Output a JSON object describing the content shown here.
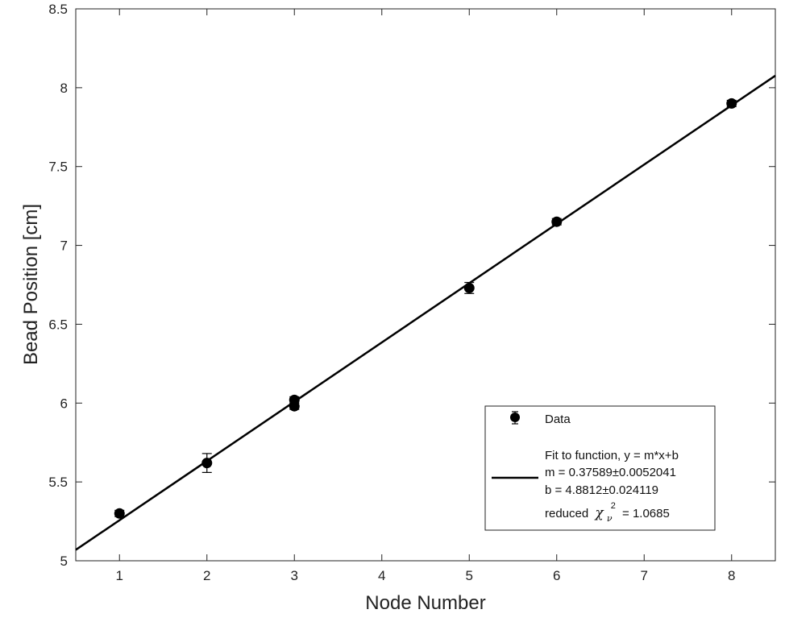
{
  "chart_data": {
    "type": "scatter",
    "xlabel": "Node Number",
    "ylabel": "Bead Position [cm]",
    "xlim": [
      0.5,
      8.5
    ],
    "ylim": [
      5,
      8.5
    ],
    "x_ticks": [
      "1",
      "2",
      "3",
      "4",
      "5",
      "6",
      "7",
      "8"
    ],
    "y_ticks": [
      "5",
      "5.5",
      "6",
      "6.5",
      "7",
      "7.5",
      "8",
      "8.5"
    ],
    "series": [
      {
        "name": "Data",
        "kind": "errorbar",
        "x": [
          1,
          2,
          3,
          3,
          5,
          6,
          8
        ],
        "y": [
          5.3,
          5.62,
          6.02,
          5.98,
          6.73,
          7.15,
          7.9
        ],
        "yerr": [
          0.02,
          0.06,
          0.02,
          0.02,
          0.035,
          0.02,
          0.02
        ]
      },
      {
        "name": "Fit to function, y = m*x+b",
        "kind": "line",
        "slope": 0.37589,
        "intercept": 4.8812
      }
    ],
    "legend": {
      "position": "lower-right",
      "data_label": "Data",
      "fit_lines": [
        "Fit to function, y = m*x+b",
        "m = 0.37589±0.0052041",
        "b = 4.8812±0.024119"
      ],
      "chi_prefix": "reduced",
      "chi_symbol": "χ",
      "chi_sub": "ν",
      "chi_sup": "2",
      "chi_value": "= 1.0685"
    },
    "colors": {
      "data": "#000000",
      "fit": "#000000"
    }
  }
}
